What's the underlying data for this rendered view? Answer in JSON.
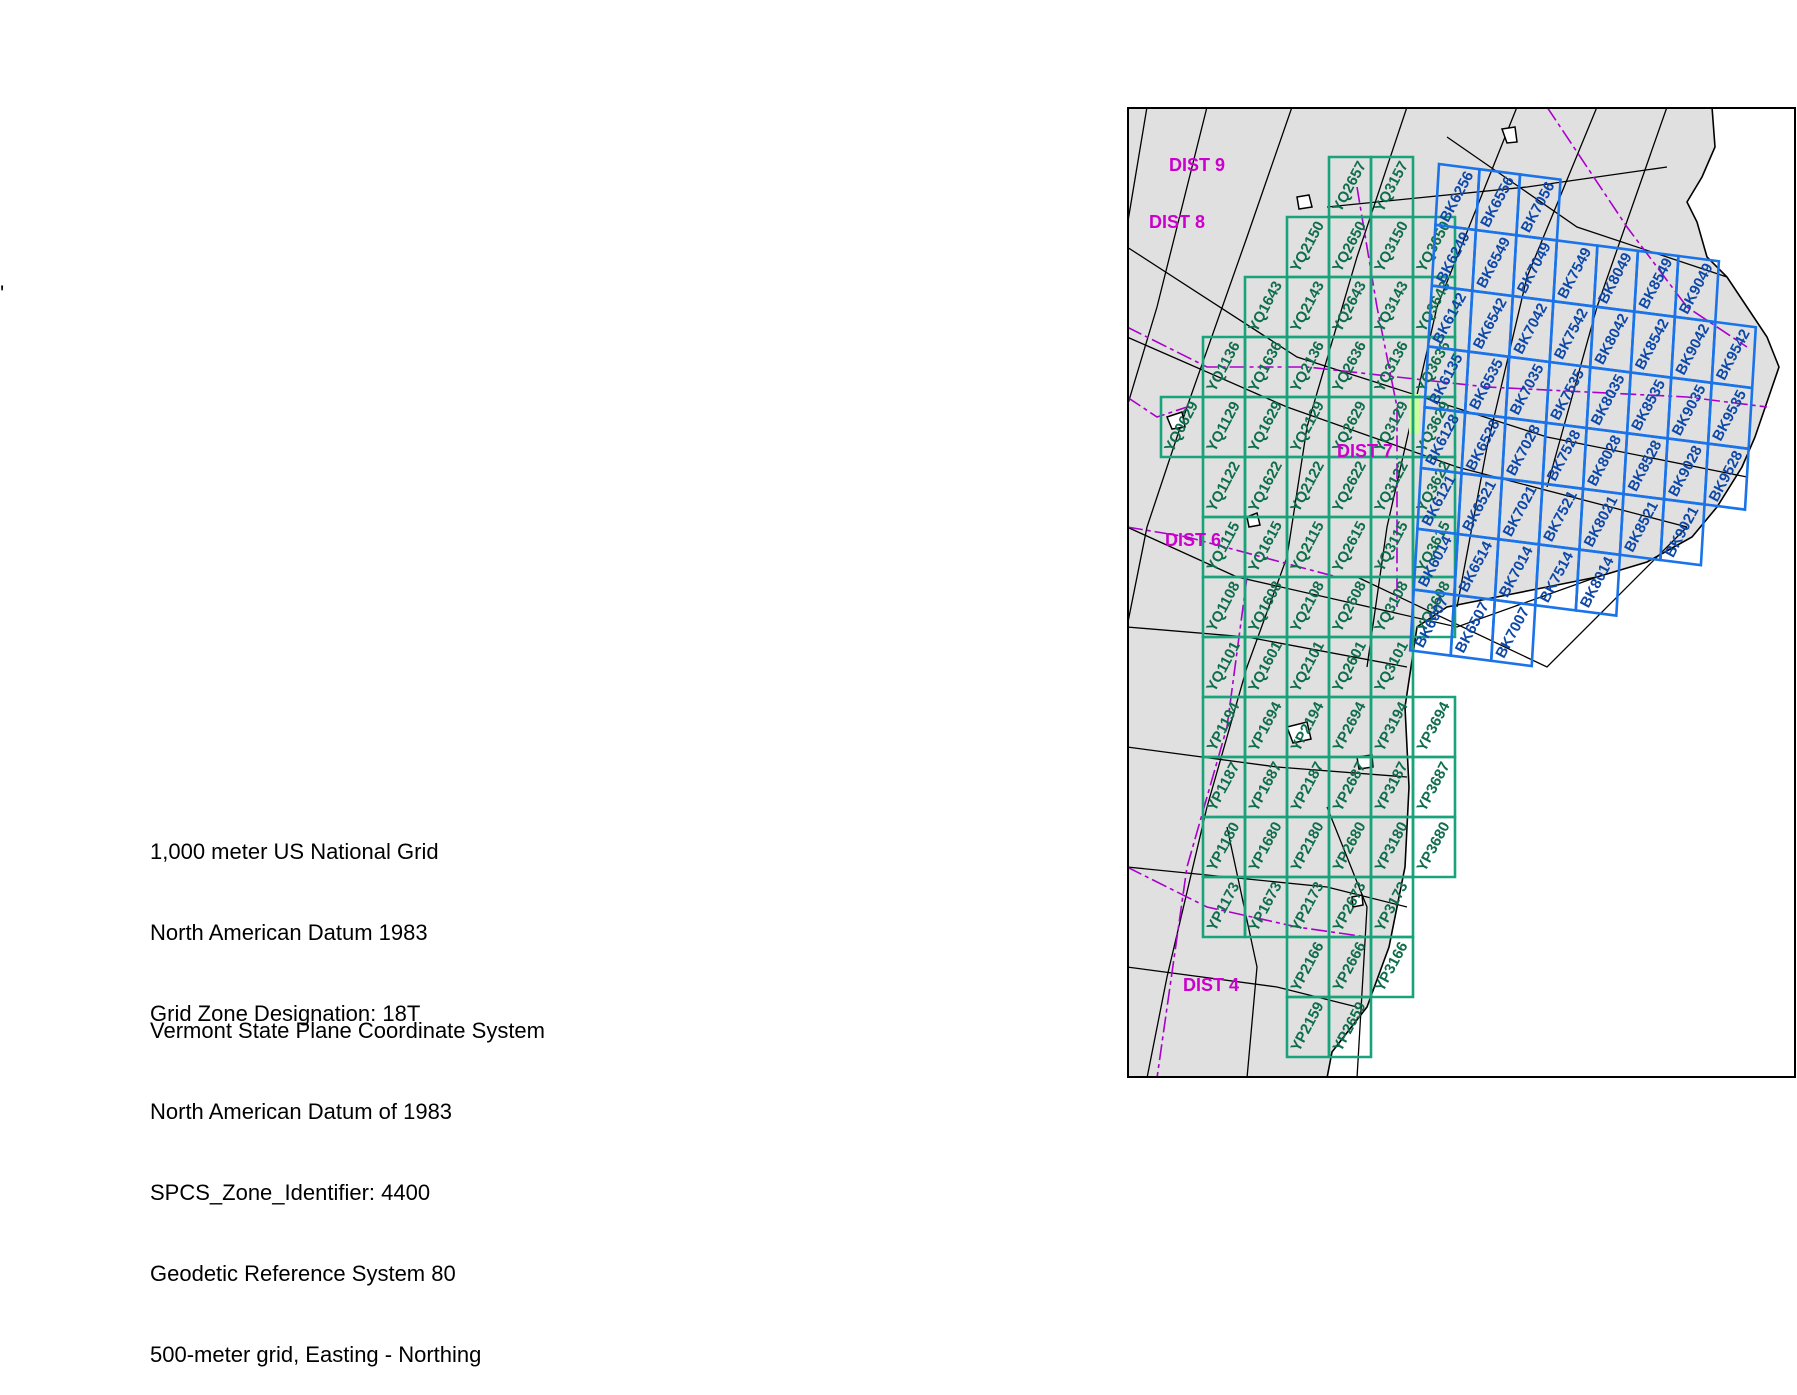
{
  "stray_mark": "'",
  "notes": {
    "usng": [
      "1,000 meter US National Grid",
      "North American Datum 1983",
      "Grid Zone Designation: 18T"
    ],
    "spcs": [
      "Vermont State Plane Coordinate System",
      "North American Datum of 1983",
      "SPCS_Zone_Identifier: 4400",
      "Geodetic Reference System 80",
      "500-meter grid, Easting - Northing"
    ]
  },
  "colors": {
    "land": "#e0e0e0",
    "boundary": "#000000",
    "district_line": "#aa00cc",
    "district_label": "#cc00cc",
    "green_grid": "#1aa37a",
    "blue_grid": "#1a73e8",
    "highlight": "#ccff99"
  },
  "districts": [
    "DIST 9",
    "DIST 8",
    "DIST 7",
    "DIST 6",
    "DIST 4"
  ],
  "green_grid": [
    [
      "",
      "",
      "",
      "YQ2657",
      "YQ3157",
      ""
    ],
    [
      "",
      "",
      "YQ2150",
      "YQ2650",
      "YQ3150",
      "YQ3650"
    ],
    [
      "",
      "YQ1643",
      "YQ2143",
      "YQ2643",
      "YQ3143",
      "YQ3643"
    ],
    [
      "YQ1136",
      "YQ1636",
      "YQ2136",
      "YQ2636",
      "YQ3136",
      "YQ3636"
    ],
    [
      "YQ1129",
      "YQ1629",
      "YQ2129",
      "YQ2629",
      "YQ3129",
      "YQ3629"
    ],
    [
      "YQ1122",
      "YQ1622",
      "YQ2122",
      "YQ2622",
      "YQ3122",
      "YQ3622"
    ],
    [
      "YQ1115",
      "YQ1615",
      "YQ2115",
      "YQ2615",
      "YQ3115",
      "YQ3615"
    ],
    [
      "YQ1108",
      "YQ1608",
      "YQ2108",
      "YQ2608",
      "YQ3108",
      "YQ3608"
    ],
    [
      "YQ1101",
      "YQ1601",
      "YQ2101",
      "YQ2601",
      "YQ3101",
      ""
    ],
    [
      "YP1194",
      "YP1694",
      "YP2194",
      "YP2694",
      "YP3194",
      "YP3694"
    ],
    [
      "YP1187",
      "YP1687",
      "YP2187",
      "YP2687",
      "YP3187",
      "YP3687"
    ],
    [
      "YP1180",
      "YP1680",
      "YP2180",
      "YP2680",
      "YP3180",
      "YP3680"
    ],
    [
      "YP1173",
      "YP1673",
      "YP2173",
      "YP2673",
      "YP3173",
      ""
    ],
    [
      "",
      "",
      "YP2166",
      "YP2666",
      "YP3166",
      ""
    ],
    [
      "",
      "",
      "YP2159",
      "YP2659",
      "",
      ""
    ]
  ],
  "green_extra": "YQ0629",
  "blue_grid": [
    [
      "BK6256",
      "BK6556",
      "BK7056",
      "",
      "",
      "",
      "",
      ""
    ],
    [
      "BK6249",
      "BK6549",
      "BK7049",
      "BK7549",
      "BK8049",
      "BK8549",
      "BK9049",
      ""
    ],
    [
      "BK6142",
      "BK6542",
      "BK7042",
      "BK7542",
      "BK8042",
      "BK8542",
      "BK9042",
      "BK9542"
    ],
    [
      "BK6135",
      "BK6535",
      "BK7035",
      "BK7535",
      "BK8035",
      "BK8535",
      "BK9035",
      "BK9535"
    ],
    [
      "BK6128",
      "BK6528",
      "BK7028",
      "BK7528",
      "BK8028",
      "BK8528",
      "BK9028",
      "BK9528"
    ],
    [
      "BK6121",
      "BK6521",
      "BK7021",
      "BK7521",
      "BK8021",
      "BK8521",
      "BK9021",
      ""
    ],
    [
      "BK6014",
      "BK6514",
      "BK7014",
      "BK7514",
      "BK8014",
      "",
      "",
      ""
    ],
    [
      "BK6007",
      "BK6507",
      "BK7007",
      "",
      "",
      "",
      "",
      ""
    ]
  ]
}
